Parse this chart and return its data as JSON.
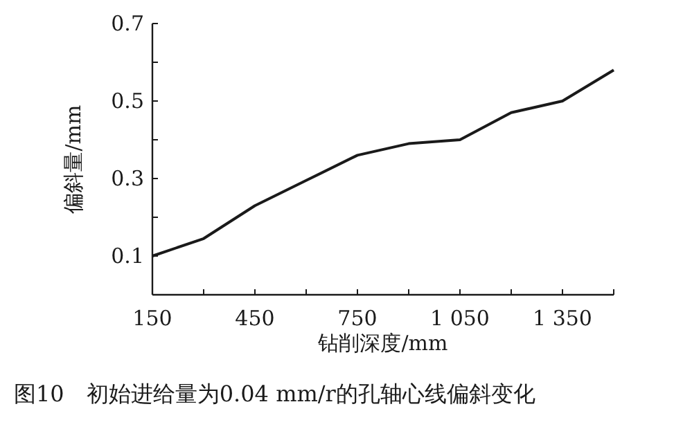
{
  "chart_data": {
    "type": "line",
    "xlabel": "钻削深度/mm",
    "ylabel": "偏斜量/mm",
    "annotations": [
      "图10　初始进给量为0.04 mm/r的孔轴心线偏斜变化"
    ],
    "x": [
      150,
      300,
      450,
      600,
      750,
      900,
      1050,
      1200,
      1350,
      1500
    ],
    "series": [
      {
        "color": "#1a1a1a",
        "values": [
          0.1,
          0.145,
          0.23,
          0.295,
          0.36,
          0.39,
          0.4,
          0.47,
          0.5,
          0.58
        ]
      }
    ],
    "xlim": [
      150,
      1500
    ],
    "xticks": [
      150,
      {
        "value": 300,
        "label": null
      },
      450,
      {
        "value": 600,
        "label": null
      },
      750,
      {
        "value": 900,
        "label": null
      },
      {
        "value": 1050,
        "label": "1 050"
      },
      {
        "value": 1200,
        "label": null
      },
      {
        "value": 1350,
        "label": "1 350"
      },
      {
        "value": 1500,
        "label": null
      }
    ],
    "ylim": [
      0,
      0.7
    ],
    "yticks": [
      {
        "value": 0,
        "label": null
      },
      0.1,
      {
        "value": 0.2,
        "label": null
      },
      0.3,
      {
        "value": 0.4,
        "label": null
      },
      0.5,
      {
        "value": 0.6,
        "label": null
      },
      0.7
    ],
    "marker": "none",
    "line_style": "solid"
  }
}
